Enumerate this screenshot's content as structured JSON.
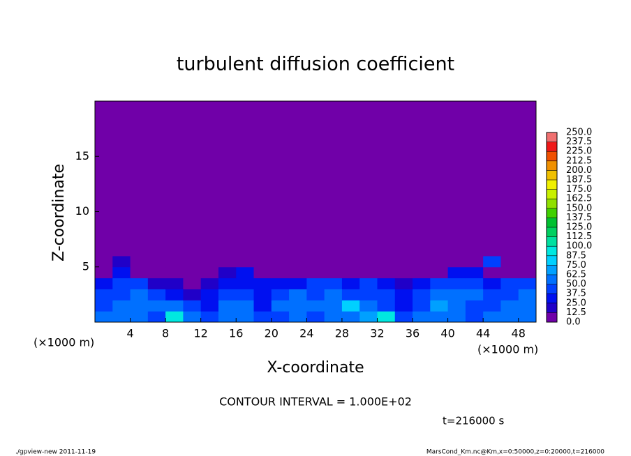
{
  "chart_data": {
    "type": "heatmap",
    "title": "turbulent diffusion coefficient",
    "xlabel": "X-coordinate",
    "ylabel": "Z-coordinate",
    "xunit_label": "(×1000 m)",
    "yunit_label": "(×1000 m)",
    "xlim": [
      0,
      50
    ],
    "ylim": [
      0,
      20
    ],
    "xticks": [
      4,
      8,
      12,
      16,
      20,
      24,
      28,
      32,
      36,
      40,
      44,
      48
    ],
    "yticks": [
      5,
      10,
      15
    ],
    "xbins": [
      0,
      2,
      4,
      6,
      8,
      10,
      12,
      14,
      16,
      18,
      20,
      22,
      24,
      26,
      28,
      30,
      32,
      34,
      36,
      38,
      40,
      42,
      44,
      46,
      48,
      50
    ],
    "ybins": [
      0,
      1,
      2,
      3,
      4,
      5,
      6,
      20
    ],
    "z": [
      [
        50,
        55,
        60,
        45,
        90,
        55,
        40,
        60,
        55,
        40,
        45,
        50,
        40,
        50,
        60,
        70,
        90,
        45,
        50,
        60,
        55,
        45,
        50,
        55,
        60
      ],
      [
        45,
        50,
        60,
        55,
        60,
        45,
        30,
        50,
        50,
        35,
        50,
        55,
        50,
        60,
        75,
        60,
        45,
        35,
        45,
        65,
        55,
        40,
        45,
        50,
        55
      ],
      [
        40,
        45,
        50,
        45,
        30,
        20,
        25,
        45,
        40,
        30,
        45,
        50,
        45,
        55,
        45,
        40,
        40,
        30,
        40,
        60,
        60,
        50,
        40,
        45,
        50
      ],
      [
        30,
        40,
        45,
        20,
        15,
        10,
        20,
        35,
        35,
        25,
        30,
        35,
        40,
        40,
        30,
        45,
        30,
        20,
        35,
        40,
        45,
        40,
        35,
        40,
        45
      ],
      [
        0,
        30,
        0,
        0,
        0,
        0,
        0,
        20,
        25,
        0,
        0,
        0,
        0,
        0,
        0,
        0,
        0,
        0,
        0,
        0,
        25,
        30,
        0,
        0,
        0
      ],
      [
        0,
        20,
        0,
        0,
        0,
        0,
        0,
        0,
        0,
        0,
        0,
        0,
        0,
        0,
        0,
        0,
        0,
        0,
        0,
        0,
        0,
        0,
        40,
        0,
        0
      ],
      [
        0,
        0,
        0,
        0,
        0,
        0,
        0,
        0,
        0,
        0,
        0,
        0,
        0,
        0,
        0,
        0,
        0,
        0,
        0,
        0,
        0,
        0,
        0,
        0,
        0
      ]
    ],
    "colorbar_ticks": [
      {
        "value": 0,
        "label": "0.0"
      },
      {
        "value": 12.5,
        "label": "12.5"
      },
      {
        "value": 25,
        "label": "25.0"
      },
      {
        "value": 37.5,
        "label": "37.5"
      },
      {
        "value": 50,
        "label": "50.0"
      },
      {
        "value": 62.5,
        "label": "62.5"
      },
      {
        "value": 75,
        "label": "75.0"
      },
      {
        "value": 87.5,
        "label": "87.5"
      },
      {
        "value": 100,
        "label": "100.0"
      },
      {
        "value": 112.5,
        "label": "112.5"
      },
      {
        "value": 125,
        "label": "125.0"
      },
      {
        "value": 137.5,
        "label": "137.5"
      },
      {
        "value": 150,
        "label": "150.0"
      },
      {
        "value": 162.5,
        "label": "162.5"
      },
      {
        "value": 175,
        "label": "175.0"
      },
      {
        "value": 187.5,
        "label": "187.5"
      },
      {
        "value": 200,
        "label": "200.0"
      },
      {
        "value": 212.5,
        "label": "212.5"
      },
      {
        "value": 225,
        "label": "225.0"
      },
      {
        "value": 237.5,
        "label": "237.5"
      },
      {
        "value": 250,
        "label": "250.0"
      }
    ],
    "colors": [
      "#7000a8",
      "#2000c8",
      "#0010f0",
      "#0040ff",
      "#0070ff",
      "#00a0ff",
      "#00d0ff",
      "#00e8e0",
      "#00e0a0",
      "#00d060",
      "#00c030",
      "#40d000",
      "#90e000",
      "#c8f000",
      "#f0f000",
      "#f0c000",
      "#f09000",
      "#f05000",
      "#f01818",
      "#f07070"
    ],
    "contour_note": "CONTOUR INTERVAL = 1.000E+02",
    "time_label": "t=216000 s",
    "footer_left": "./gpview-new  2011-11-19",
    "footer_right": "MarsCond_Km.nc@Km,x=0:50000,z=0:20000,t=216000"
  }
}
